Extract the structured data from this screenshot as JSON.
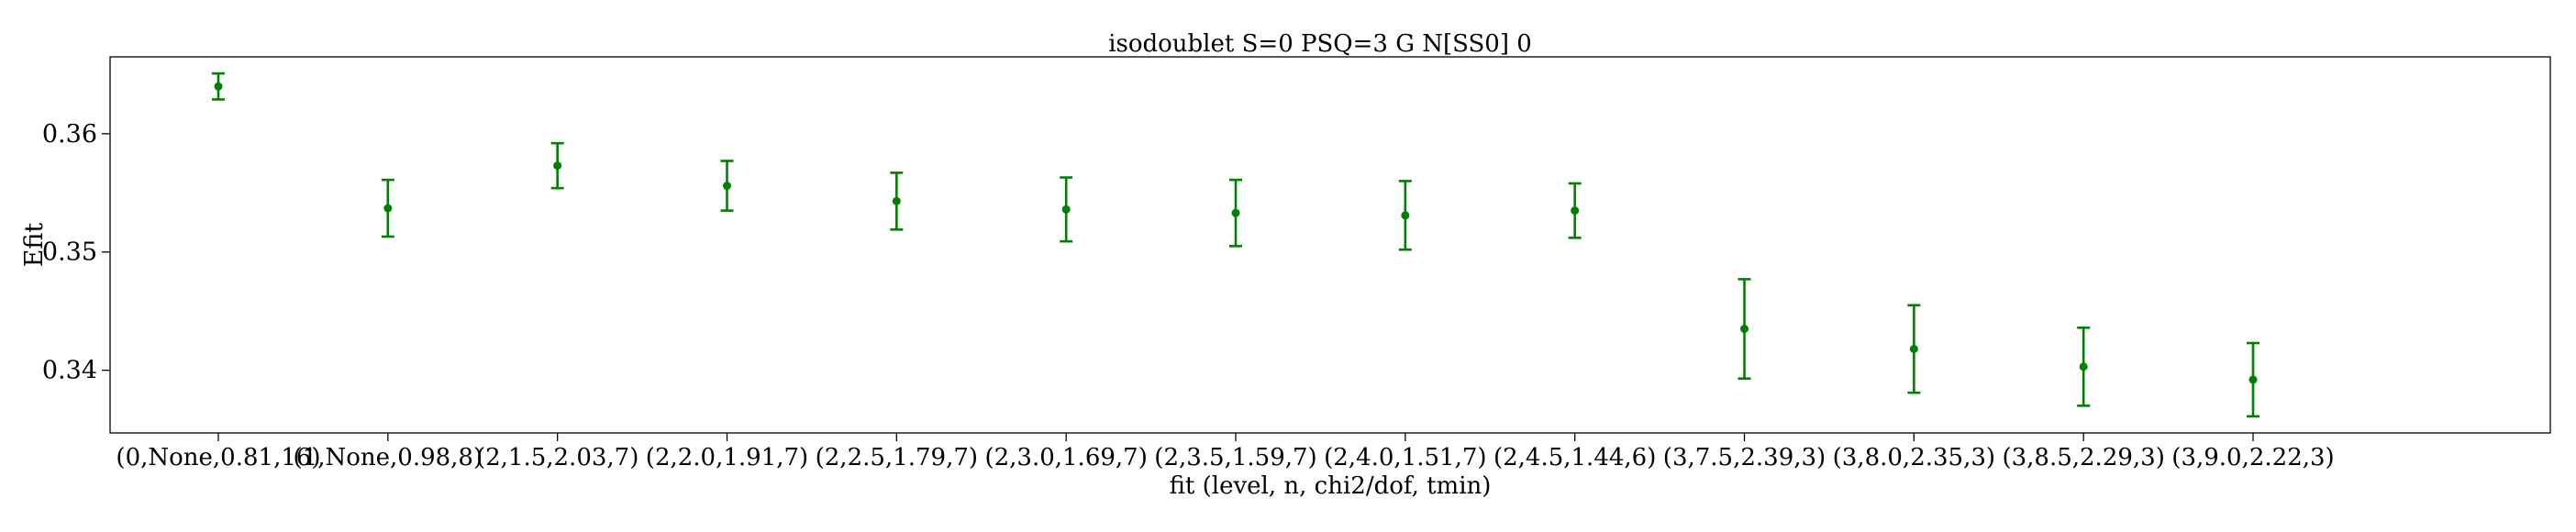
{
  "chart_data": {
    "type": "scatter",
    "title": "isodoublet S=0 PSQ=3 G N[SS0] 0",
    "xlabel": "fit (level, n, chi2/dof, tmin)",
    "ylabel": "Efit",
    "categories": [
      "(0,None,0.81,16)",
      "(1,None,0.98,8)",
      "(2,1.5,2.03,7)",
      "(2,2.0,1.91,7)",
      "(2,2.5,1.79,7)",
      "(2,3.0,1.69,7)",
      "(2,3.5,1.59,7)",
      "(2,4.0,1.51,7)",
      "(2,4.5,1.44,6)",
      "(3,7.5,2.39,3)",
      "(3,8.0,2.35,3)",
      "(3,8.5,2.29,3)",
      "(3,9.0,2.22,3)"
    ],
    "values": [
      0.364,
      0.3537,
      0.3573,
      0.3556,
      0.3543,
      0.3536,
      0.3533,
      0.3531,
      0.3535,
      0.3435,
      0.3418,
      0.3403,
      0.3392
    ],
    "errors": [
      0.0011,
      0.0024,
      0.0019,
      0.0021,
      0.0024,
      0.0027,
      0.0028,
      0.0029,
      0.0023,
      0.0042,
      0.0037,
      0.0033,
      0.0031
    ],
    "yticks": [
      "0.34",
      "0.35",
      "0.36"
    ],
    "ytick_values": [
      0.34,
      0.35,
      0.36
    ],
    "ylim": [
      0.3347,
      0.3665
    ],
    "marker_color": "#008000",
    "grid": false
  }
}
